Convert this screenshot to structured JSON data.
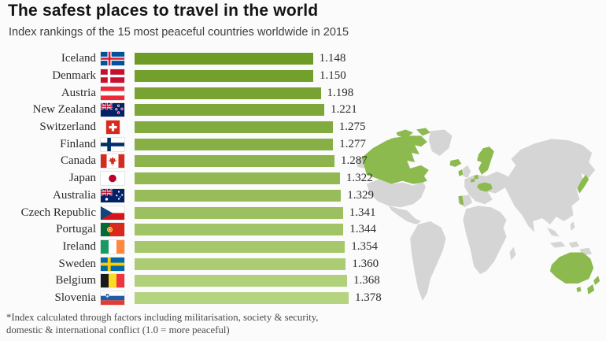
{
  "header": {
    "title": "The safest places to travel in the world",
    "subtitle": "Index rankings of the 15 most peaceful countries worldwide in 2015"
  },
  "footnote": {
    "line1": "*Index calculated through factors including militarisation, society & security,",
    "line2": "domestic & international conflict (1.0 = more peaceful)"
  },
  "chart_data": {
    "type": "bar",
    "orientation": "horizontal",
    "title": "The safest places to travel in the world",
    "subtitle": "Index rankings of the 15 most peaceful countries worldwide in 2015",
    "value_domain": [
      0,
      1.378
    ],
    "bar_color_top": "#6E9B25",
    "bar_color_bottom": "#B5D480",
    "categories": [
      "Iceland",
      "Denmark",
      "Austria",
      "New Zealand",
      "Switzerland",
      "Finland",
      "Canada",
      "Japan",
      "Australia",
      "Czech Republic",
      "Portugal",
      "Ireland",
      "Sweden",
      "Belgium",
      "Slovenia"
    ],
    "values": [
      1.148,
      1.15,
      1.198,
      1.221,
      1.275,
      1.277,
      1.287,
      1.322,
      1.329,
      1.341,
      1.344,
      1.354,
      1.36,
      1.368,
      1.378
    ],
    "rows": [
      {
        "country": "Iceland",
        "flag": "iceland-flag",
        "value": 1.148,
        "label": "1.148"
      },
      {
        "country": "Denmark",
        "flag": "denmark-flag",
        "value": 1.15,
        "label": "1.150"
      },
      {
        "country": "Austria",
        "flag": "austria-flag",
        "value": 1.198,
        "label": "1.198"
      },
      {
        "country": "New Zealand",
        "flag": "new-zealand-flag",
        "value": 1.221,
        "label": "1.221"
      },
      {
        "country": "Switzerland",
        "flag": "switzerland-flag",
        "value": 1.275,
        "label": "1.275"
      },
      {
        "country": "Finland",
        "flag": "finland-flag",
        "value": 1.277,
        "label": "1.277"
      },
      {
        "country": "Canada",
        "flag": "canada-flag",
        "value": 1.287,
        "label": "1.287"
      },
      {
        "country": "Japan",
        "flag": "japan-flag",
        "value": 1.322,
        "label": "1.322"
      },
      {
        "country": "Australia",
        "flag": "australia-flag",
        "value": 1.329,
        "label": "1.329"
      },
      {
        "country": "Czech Republic",
        "flag": "czech-republic-flag",
        "value": 1.341,
        "label": "1.341"
      },
      {
        "country": "Portugal",
        "flag": "portugal-flag",
        "value": 1.344,
        "label": "1.344"
      },
      {
        "country": "Ireland",
        "flag": "ireland-flag",
        "value": 1.354,
        "label": "1.354"
      },
      {
        "country": "Sweden",
        "flag": "sweden-flag",
        "value": 1.36,
        "label": "1.360"
      },
      {
        "country": "Belgium",
        "flag": "belgium-flag",
        "value": 1.368,
        "label": "1.368"
      },
      {
        "country": "Slovenia",
        "flag": "slovenia-flag",
        "value": 1.378,
        "label": "1.378"
      }
    ],
    "map": {
      "base_color": "#d5d5d5",
      "highlight_color": "#8cba4f",
      "highlighted_countries": [
        "Canada",
        "Iceland",
        "Ireland",
        "Denmark",
        "Sweden",
        "Finland",
        "Belgium",
        "Switzerland",
        "Austria",
        "Czech Republic",
        "Slovenia",
        "Portugal",
        "Japan",
        "Australia",
        "New Zealand"
      ]
    }
  }
}
